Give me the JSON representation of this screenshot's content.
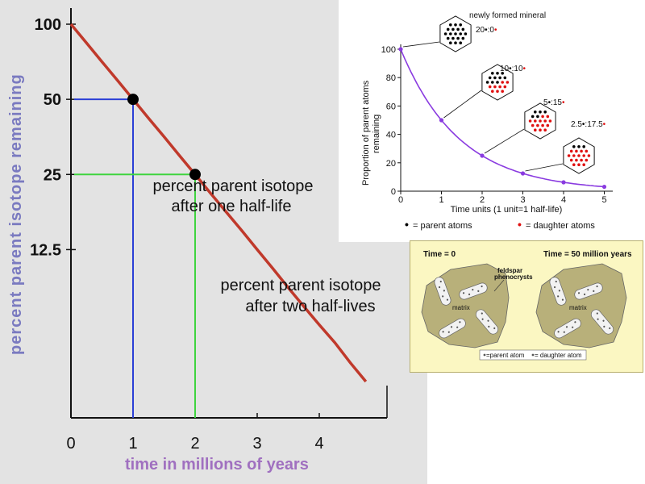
{
  "colors": {
    "main_curve": "#c0392b",
    "blue_guide": "#2b3fd6",
    "green_guide": "#3fd43f",
    "small_curve": "#8a3be0",
    "parent_atom": "#000000",
    "daughter_atom": "#e01010",
    "matrix_fill": "#b8b07a",
    "phenocryst_fill": "#f2f2f2",
    "thin_bg": "#fbf7c2"
  },
  "chart_data": [
    {
      "type": "line",
      "xlabel": "time in millions of years",
      "ylabel": "percent parent isotope remaining",
      "x_ticks": [
        "0",
        "1",
        "2",
        "3",
        "4"
      ],
      "y_ticks": [
        "100",
        "50",
        "25",
        "12.5"
      ],
      "xlim": [
        0,
        4.75
      ],
      "series": [
        {
          "x": [
            0,
            0.25,
            0.5,
            0.75,
            1,
            1.25,
            1.5,
            1.75,
            2,
            2.25,
            2.5,
            2.75,
            3,
            3.25,
            3.5,
            3.75,
            4,
            4.25,
            4.5,
            4.75
          ],
          "y": [
            100,
            84.1,
            70.7,
            59.5,
            50,
            42,
            35.4,
            29.7,
            25,
            21,
            17.7,
            14.9,
            12.5,
            10.5,
            8.8,
            7.4,
            6.25,
            5.3,
            4.4,
            3.7
          ]
        }
      ],
      "markers": [
        {
          "x": 1,
          "y": 50,
          "label_line1": "percent parent isotope",
          "label_line2": "after one half-life"
        },
        {
          "x": 2,
          "y": 25,
          "label_line1": "percent parent isotope",
          "label_line2": "after two half-lives"
        }
      ]
    },
    {
      "type": "line",
      "xlabel": "Time units (1 unit=1 half-life)",
      "ylabel_line1": "Proportion of parent atoms",
      "ylabel_line2": "remaining",
      "x_ticks": [
        "0",
        "1",
        "2",
        "3",
        "4",
        "5"
      ],
      "y_ticks": [
        "0",
        "20",
        "40",
        "60",
        "80",
        "100"
      ],
      "xlim": [
        0,
        5
      ],
      "ylim": [
        0,
        100
      ],
      "series": [
        {
          "x": [
            0,
            1,
            2,
            3,
            4,
            5
          ],
          "y": [
            100,
            50,
            25,
            12.5,
            6.25,
            3.1
          ]
        }
      ],
      "legend": [
        {
          "symbol": "•",
          "label": "= parent atoms"
        },
        {
          "symbol": "•",
          "label": "= daughter atoms"
        }
      ],
      "callouts": [
        {
          "title": "newly formed mineral",
          "parent": "20",
          "daughter": "0",
          "parent_count": 20,
          "daughter_count": 0,
          "point_x": 0
        },
        {
          "parent": "10",
          "daughter": "10",
          "parent_count": 10,
          "daughter_count": 10,
          "point_x": 1
        },
        {
          "parent": "5",
          "daughter": "15",
          "parent_count": 5,
          "daughter_count": 15,
          "point_x": 2
        },
        {
          "parent": "2.5",
          "daughter": "17.5",
          "parent_count": 2.5,
          "daughter_count": 17.5,
          "point_x": 3
        }
      ]
    }
  ],
  "thin_section": {
    "panel_left_title": "Time = 0",
    "panel_right_title": "Time = 50 million years",
    "label_feldspar_1": "feldspar",
    "label_feldspar_2": "phenocrysts",
    "label_matrix": "matrix",
    "legend_parent": "=parent atom",
    "legend_daughter": "= daughter atom"
  }
}
